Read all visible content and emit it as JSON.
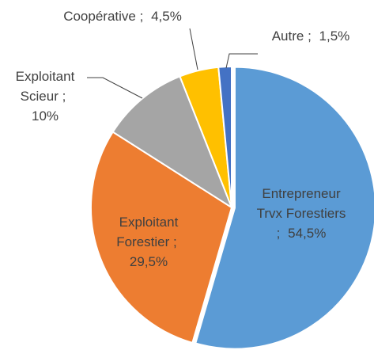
{
  "chart_data": {
    "type": "pie",
    "categories": [
      "Entrepreneur Trvx Forestiers",
      "Exploitant Forestier",
      "Exploitant Scieur",
      "Coopérative",
      "Autre"
    ],
    "values": [
      54.5,
      29.5,
      10,
      4.5,
      1.5
    ],
    "value_labels": [
      "54,5%",
      "29,5%",
      "10%",
      "4,5%",
      "1,5%"
    ],
    "label_separator": ";",
    "colors": [
      "#5b9bd5",
      "#ed7d31",
      "#a5a5a5",
      "#ffc000",
      "#4472c4"
    ]
  }
}
